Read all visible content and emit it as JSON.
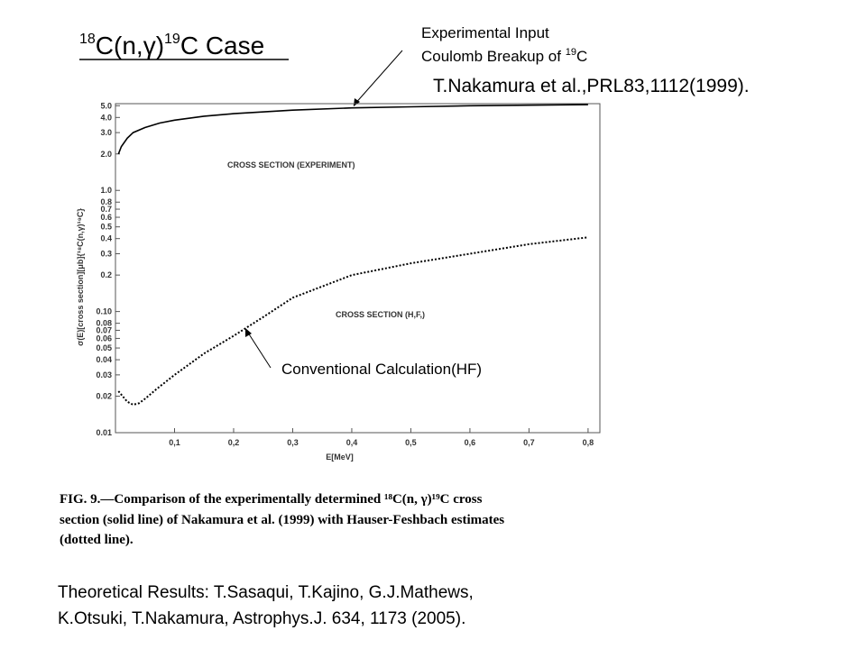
{
  "slide": {
    "title": {
      "sup1": "18",
      "main": "C(n,γ)",
      "sup2": "19",
      "rest": "C Case"
    },
    "annotation_experiment": {
      "line1": "Experimental Input",
      "line2": "Coulomb Breakup of ",
      "sup": "19",
      "line2_end": "C"
    },
    "reference": "T.Nakamura et al.,PRL83,1112(1999).",
    "annotation_hf": "Conventional Calculation(HF)",
    "caption": [
      "FIG. 9.—Comparison of the experimentally determined ¹⁸C(n, γ)¹⁹C cross",
      "section (solid line) of Nakamura et al. (1999) with Hauser-Feshbach estimates",
      "(dotted line)."
    ],
    "footer": [
      "Theoretical Results: T.Sasaqui, T.Kajino, G.J.Mathews,",
      "K.Otsuki, T.Nakamura, Astrophys.J. 634, 1173 (2005)."
    ]
  },
  "chart_data": {
    "type": "line",
    "x_label": "E[MeV]",
    "y_label": "σ(E)[cross section][μb]{¹⁸C(n,γ)¹⁹C}",
    "annotations": [
      "CROSS SECTION (EXPERIMENT)",
      "CROSS SECTION (H,F,)"
    ],
    "xlim": [
      0,
      0.82
    ],
    "xticks": [
      {
        "value": 0.1,
        "label": "0,1"
      },
      {
        "value": 0.2,
        "label": "0,2"
      },
      {
        "value": 0.3,
        "label": "0,3"
      },
      {
        "value": 0.4,
        "label": "0,4"
      },
      {
        "value": 0.5,
        "label": "0,5"
      },
      {
        "value": 0.6,
        "label": "0,6"
      },
      {
        "value": 0.7,
        "label": "0,7"
      },
      {
        "value": 0.8,
        "label": "0,8"
      }
    ],
    "ylim": [
      0.01,
      5.2
    ],
    "y_scale": "log",
    "yticks": [
      0.01,
      0.02,
      0.03,
      0.04,
      0.05,
      0.06,
      0.07,
      0.08,
      {
        "value": 0.1,
        "label": "0.10"
      },
      0.2,
      0.3,
      0.4,
      0.5,
      0.6,
      0.7,
      0.8,
      {
        "value": 1,
        "label": "1.0"
      },
      {
        "value": 2,
        "label": "2.0"
      },
      {
        "value": 3,
        "label": "3.0"
      },
      {
        "value": 4,
        "label": "4.0"
      },
      {
        "value": 5,
        "label": "5.0"
      }
    ],
    "series": [
      {
        "style": "solid",
        "color": "#000000",
        "x": [
          0.005,
          0.01,
          0.02,
          0.03,
          0.05,
          0.075,
          0.1,
          0.15,
          0.2,
          0.3,
          0.4,
          0.5,
          0.6,
          0.7,
          0.8
        ],
        "values": [
          2.0,
          2.3,
          2.7,
          3.0,
          3.3,
          3.6,
          3.8,
          4.1,
          4.3,
          4.6,
          4.8,
          4.9,
          5.0,
          5.05,
          5.1
        ]
      },
      {
        "style": "dotted",
        "color": "#000000",
        "x": [
          0.005,
          0.02,
          0.03,
          0.04,
          0.05,
          0.07,
          0.1,
          0.15,
          0.2,
          0.25,
          0.3,
          0.4,
          0.5,
          0.6,
          0.7,
          0.8
        ],
        "values": [
          0.022,
          0.018,
          0.017,
          0.0175,
          0.019,
          0.023,
          0.03,
          0.045,
          0.063,
          0.09,
          0.13,
          0.2,
          0.25,
          0.3,
          0.36,
          0.41
        ]
      }
    ]
  }
}
